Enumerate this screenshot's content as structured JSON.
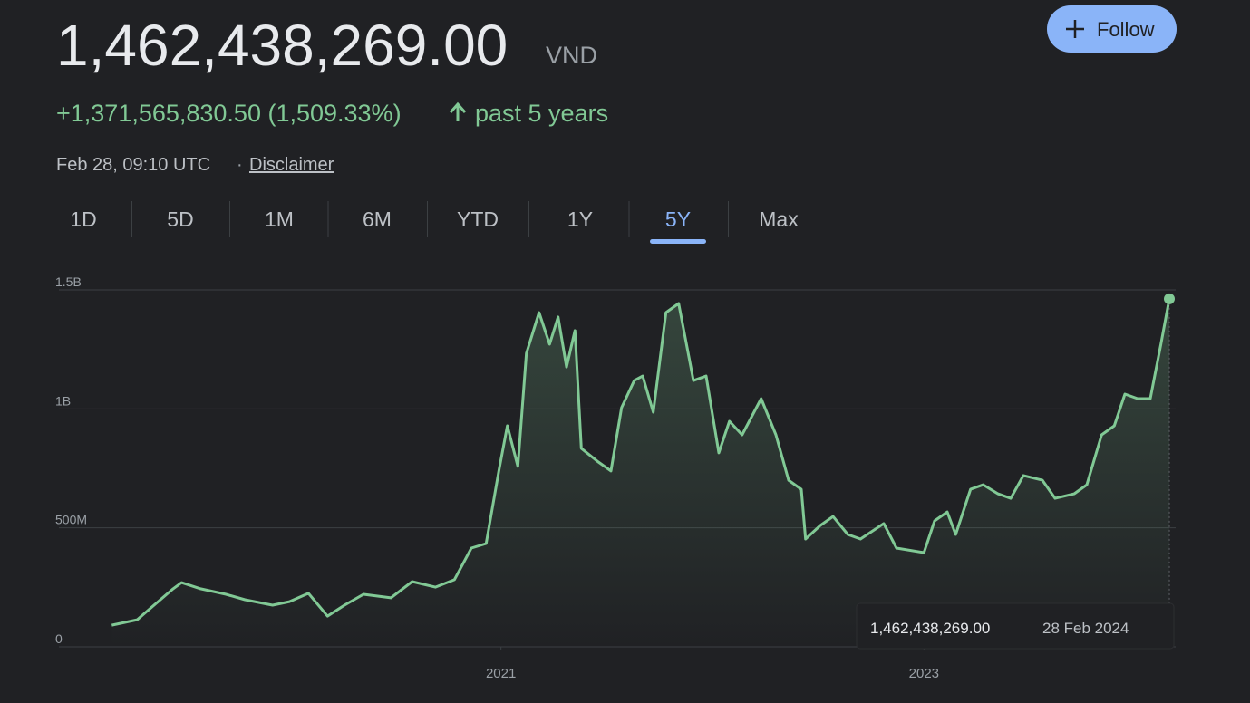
{
  "header": {
    "price": "1,462,438,269.00",
    "currency": "VND",
    "change": "+1,371,565,830.50 (1,509.33%)",
    "period": "past 5 years",
    "timestamp": "Feb 28, 09:10 UTC",
    "separator": "·",
    "disclaimer": "Disclaimer"
  },
  "follow": "Follow",
  "ranges": [
    "1D",
    "5D",
    "1M",
    "6M",
    "YTD",
    "1Y",
    "5Y",
    "Max"
  ],
  "selected_range": 6,
  "tooltip_date": "28 Feb 2024",
  "chart_data": {
    "type": "line",
    "color": "#81c995",
    "x": [
      2019.16,
      2019.28,
      2019.34,
      2019.45,
      2019.49,
      2019.58,
      2019.7,
      2019.79,
      2019.92,
      2020.0,
      2020.09,
      2020.18,
      2020.26,
      2020.35,
      2020.48,
      2020.58,
      2020.69,
      2020.78,
      2020.86,
      2020.93,
      2020.99,
      2021.03,
      2021.08,
      2021.12,
      2021.18,
      2021.23,
      2021.27,
      2021.31,
      2021.35,
      2021.38,
      2021.46,
      2021.52,
      2021.57,
      2021.63,
      2021.67,
      2021.72,
      2021.78,
      2021.84,
      2021.91,
      2021.97,
      2022.03,
      2022.08,
      2022.14,
      2022.23,
      2022.3,
      2022.36,
      2022.42,
      2022.44,
      2022.51,
      2022.57,
      2022.64,
      2022.7,
      2022.81,
      2022.87,
      2023.0,
      2023.05,
      2023.11,
      2023.15,
      2023.22,
      2023.28,
      2023.35,
      2023.41,
      2023.47,
      2023.56,
      2023.62,
      2023.71,
      2023.77,
      2023.84,
      2023.9,
      2023.95,
      2024.01,
      2024.07,
      2024.12,
      2024.16
    ],
    "values": [
      91000000,
      114000000,
      160000000,
      244000000,
      270000000,
      244000000,
      221000000,
      198000000,
      175000000,
      190000000,
      225000000,
      129000000,
      175000000,
      221000000,
      206000000,
      274000000,
      251000000,
      282000000,
      415000000,
      434000000,
      739000000,
      929000000,
      758000000,
      1233000000,
      1405000000,
      1272000000,
      1386000000,
      1176000000,
      1329000000,
      834000000,
      777000000,
      739000000,
      1005000000,
      1119000000,
      1138000000,
      986000000,
      1405000000,
      1443000000,
      1119000000,
      1138000000,
      815000000,
      948000000,
      891000000,
      1043000000,
      891000000,
      700000000,
      662000000,
      453000000,
      510000000,
      548000000,
      472000000,
      453000000,
      518000000,
      415000000,
      396000000,
      529000000,
      567000000,
      472000000,
      662000000,
      681000000,
      643000000,
      624000000,
      720000000,
      700000000,
      624000000,
      643000000,
      681000000,
      891000000,
      929000000,
      1062000000,
      1043000000,
      1043000000,
      1272000000,
      1462438269
    ],
    "xlim": [
      2018.91,
      2024.19
    ],
    "xticks": [
      2021,
      2023
    ],
    "ylim": [
      0,
      1500000000
    ],
    "yticks": [
      0,
      {
        "value": 500000000,
        "label": "500M"
      },
      {
        "value": 1000000000,
        "label": "1B"
      },
      {
        "value": 1500000000,
        "label": "1.5B"
      }
    ],
    "grid": true
  }
}
